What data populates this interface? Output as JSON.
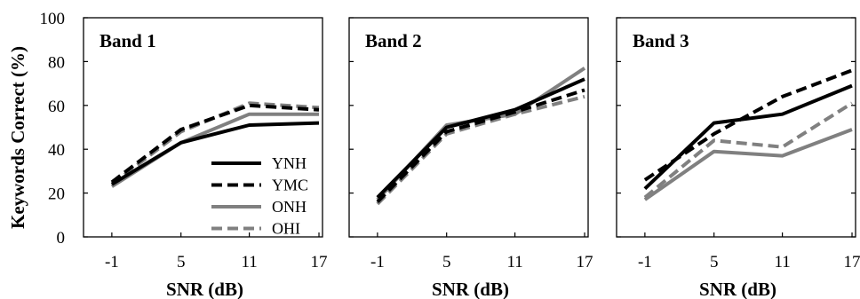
{
  "chart_data": {
    "type": "line",
    "ylabel": "Keywords Correct (%)",
    "xlabel": "SNR (dB)",
    "ylim": [
      0,
      100
    ],
    "yticks": [
      "0",
      "20",
      "40",
      "60",
      "80",
      "100"
    ],
    "categories": [
      "-1",
      "5",
      "11",
      "17"
    ],
    "legend": {
      "placement": "lower-right of Band 1",
      "entries": [
        "YNH",
        "YMC",
        "ONH",
        "OHI"
      ]
    },
    "styles": {
      "YNH": {
        "color": "#000000",
        "dash": "solid"
      },
      "YMC": {
        "color": "#000000",
        "dash": "dashed"
      },
      "ONH": {
        "color": "#808080",
        "dash": "solid"
      },
      "OHI": {
        "color": "#808080",
        "dash": "dashed"
      }
    },
    "panels": [
      {
        "title": "Band 1",
        "series": [
          {
            "name": "YNH",
            "values": [
              24,
              43,
              51,
              52
            ]
          },
          {
            "name": "YMC",
            "values": [
              25,
              49,
              60,
              58
            ]
          },
          {
            "name": "ONH",
            "values": [
              23,
              43,
              56,
              56
            ]
          },
          {
            "name": "OHI",
            "values": [
              24,
              48,
              61,
              59
            ]
          }
        ]
      },
      {
        "title": "Band 2",
        "series": [
          {
            "name": "YNH",
            "values": [
              18,
              50,
              58,
              72
            ]
          },
          {
            "name": "YMC",
            "values": [
              16,
              48,
              57,
              67
            ]
          },
          {
            "name": "ONH",
            "values": [
              17,
              51,
              56,
              77
            ]
          },
          {
            "name": "OHI",
            "values": [
              15,
              47,
              56,
              64
            ]
          }
        ]
      },
      {
        "title": "Band 3",
        "series": [
          {
            "name": "YNH",
            "values": [
              22,
              52,
              56,
              69
            ]
          },
          {
            "name": "YMC",
            "values": [
              26,
              47,
              64,
              76
            ]
          },
          {
            "name": "ONH",
            "values": [
              17,
              39,
              37,
              49
            ]
          },
          {
            "name": "OHI",
            "values": [
              18,
              44,
              41,
              61
            ]
          }
        ]
      }
    ]
  }
}
